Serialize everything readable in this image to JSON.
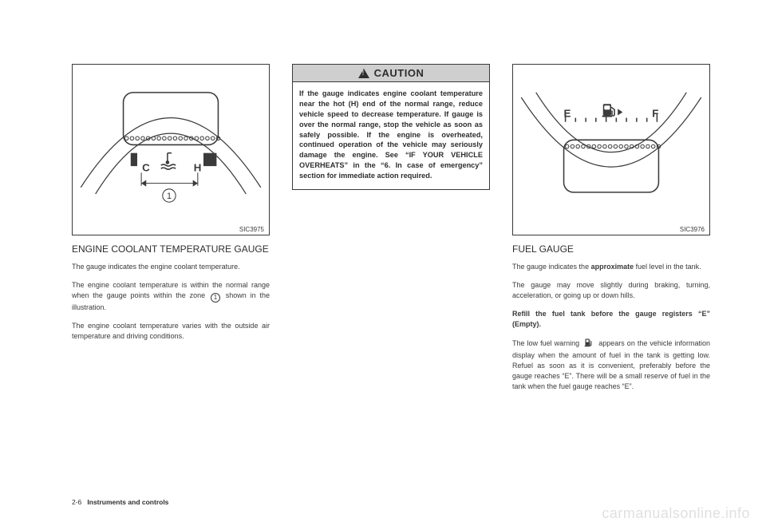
{
  "page": {
    "number": "2-6",
    "section": "Instruments and controls"
  },
  "watermark": "carmanualsonline.info",
  "column1": {
    "figure": {
      "id": "SIC3975",
      "labels": {
        "cold": "C",
        "hot": "H"
      },
      "circle_label": "1",
      "dot_count": 18,
      "colors": {
        "lines": "#3a3a3a",
        "bg": "#ffffff"
      }
    },
    "heading": "ENGINE COOLANT TEMPERATURE GAUGE",
    "p1": "The gauge indicates the engine coolant temperature.",
    "p2_pre": "The engine coolant temperature is within the normal range when the gauge points within the zone ",
    "p2_post": " shown in the illustration.",
    "p3": "The engine coolant temperature varies with the outside air temperature and driving conditions."
  },
  "caution": {
    "title": "CAUTION",
    "body": "If the gauge indicates engine coolant temperature near the hot (H) end of the normal range, reduce vehicle speed to decrease temperature. If gauge is over the normal range, stop the vehicle as soon as safely possible. If the engine is overheated, continued operation of the vehicle may seriously damage the engine. See “IF YOUR VEHICLE OVERHEATS” in the “6. In case of emergency” section for immediate action required."
  },
  "column3": {
    "figure": {
      "id": "SIC3976",
      "labels": {
        "empty": "E",
        "full": "F"
      },
      "dot_count": 18,
      "tick_count": 10,
      "colors": {
        "lines": "#3a3a3a",
        "bg": "#ffffff"
      }
    },
    "heading": "FUEL GAUGE",
    "p1_pre": "The gauge indicates the ",
    "p1_bold": "approximate",
    "p1_post": " fuel level in the tank.",
    "p2": "The gauge may move slightly during braking, turning, acceleration, or going up or down hills.",
    "p3": "Refill the fuel tank before the gauge registers “E” (Empty).",
    "p4_pre": "The low fuel warning ",
    "p4_post": " appears on the vehicle information display when the amount of fuel in the tank is getting low. Refuel as soon as it is convenient, preferably before the gauge reaches “E”. There will be a small reserve of fuel in the tank when the fuel gauge reaches “E”."
  }
}
